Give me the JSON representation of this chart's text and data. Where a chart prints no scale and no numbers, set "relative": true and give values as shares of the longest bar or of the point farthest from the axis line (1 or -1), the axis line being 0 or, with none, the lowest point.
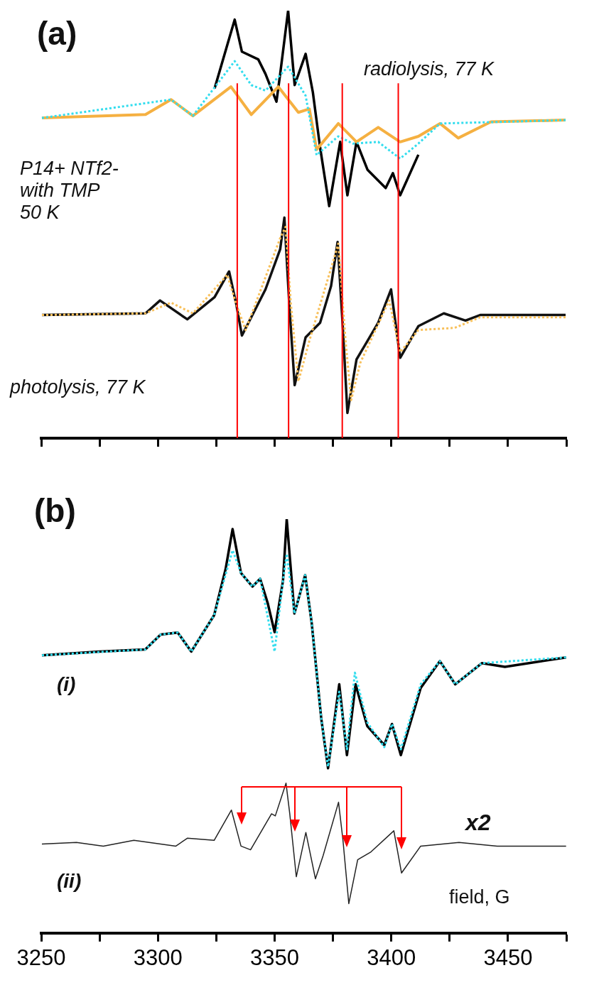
{
  "chart_data": [
    {
      "type": "line",
      "relative": true,
      "xlim": [
        3250,
        3475
      ],
      "xticks": [
        {
          "value": 3250,
          "label": null
        },
        {
          "value": 3275,
          "label": null
        },
        {
          "value": 3300,
          "label": null
        },
        {
          "value": 3325,
          "label": null
        },
        {
          "value": 3350,
          "label": null
        },
        {
          "value": 3375,
          "label": null
        },
        {
          "value": 3400,
          "label": null
        },
        {
          "value": 3425,
          "label": null
        },
        {
          "value": 3450,
          "label": null
        },
        {
          "value": 3475,
          "label": null
        }
      ],
      "tick_labels": false,
      "grid": false,
      "legend": false,
      "annotations": [
        "(a)",
        "radiolysis, 77 K",
        "P14+ NTf2-\nwith TMP\n50 K",
        "photolysis, 77 K"
      ],
      "ref_lines": [
        {
          "axis": "x",
          "value": 3334,
          "color": "#ff0000"
        },
        {
          "axis": "x",
          "value": 3356,
          "color": "#ff0000"
        },
        {
          "axis": "x",
          "value": 3379,
          "color": "#ff0000"
        },
        {
          "axis": "x",
          "value": 3403,
          "color": "#ff0000"
        }
      ],
      "series": [
        {
          "color": "#33ddee",
          "line_style": "dotted",
          "x": [
            3250.3,
            3305.6,
            3315,
            3332.9,
            3340,
            3346.1,
            3355.8,
            3363.3,
            3368,
            3377.3,
            3383.6,
            3394.4,
            3403.8,
            3411.6,
            3420.9,
            3474.7
          ],
          "values": [
            0.749,
            0.792,
            0.754,
            0.882,
            0.826,
            0.813,
            0.869,
            0.801,
            0.662,
            0.706,
            0.689,
            0.693,
            0.654,
            0.689,
            0.736,
            0.744
          ]
        },
        {
          "color": "#f8c05a",
          "line_style": "dotted",
          "x": [
            3250.3,
            3294.7,
            3305.6,
            3315,
            3329.7,
            3333.6,
            3337.6,
            3352.4,
            3354.7,
            3357,
            3360.2,
            3364.9,
            3375.7,
            3377.3,
            3380.4,
            3382.8,
            3386.7,
            3399.1,
            3403.8,
            3411.6,
            3427.2,
            3438.1,
            3474.7
          ],
          "values": [
            0.288,
            0.292,
            0.317,
            0.292,
            0.382,
            0.313,
            0.253,
            0.468,
            0.494,
            0.313,
            0.133,
            0.228,
            0.425,
            0.455,
            0.228,
            0.089,
            0.176,
            0.322,
            0.201,
            0.253,
            0.258,
            0.283,
            0.283
          ]
        },
        {
          "color": "#f5b041",
          "x": [
            3250.3,
            3294.7,
            3305.6,
            3315,
            3331.3,
            3340,
            3351.6,
            3360.2,
            3364.9,
            3368,
            3377.3,
            3385.1,
            3394.4,
            3403.8,
            3411.6,
            3420.9,
            3428.7,
            3442.7,
            3474.7
          ],
          "values": [
            0.749,
            0.757,
            0.792,
            0.754,
            0.822,
            0.757,
            0.822,
            0.762,
            0.77,
            0.675,
            0.736,
            0.693,
            0.727,
            0.693,
            0.706,
            0.736,
            0.702,
            0.74,
            0.744
          ]
        },
        {
          "color": "#000000",
          "x": [
            3324.3,
            3329.8,
            3332.9,
            3336,
            3343,
            3346.1,
            3350.8,
            3352.4,
            3355.8,
            3358.6,
            3363.3,
            3366.4,
            3369.5,
            3373.4,
            3378.1,
            3381.2,
            3385.1,
            3389.8,
            3397.6,
            3400.7,
            3403.8,
            3411.6
          ],
          "values": [
            0.818,
            0.921,
            0.979,
            0.904,
            0.886,
            0.852,
            0.787,
            0.852,
            1,
            0.826,
            0.899,
            0.809,
            0.68,
            0.543,
            0.693,
            0.568,
            0.693,
            0.628,
            0.585,
            0.62,
            0.568,
            0.663
          ]
        },
        {
          "color": "#111111",
          "x": [
            3250.3,
            3294.7,
            3300.9,
            3312.6,
            3324.3,
            3330.5,
            3333.6,
            3336,
            3346.1,
            3352.4,
            3354.2,
            3356.3,
            3358.6,
            3363.3,
            3369.5,
            3374.2,
            3377,
            3379.3,
            3381.2,
            3385.1,
            3394.4,
            3399.9,
            3403.8,
            3411.6,
            3422.5,
            3431.8,
            3438.1,
            3474.7
          ],
          "values": [
            0.288,
            0.292,
            0.322,
            0.278,
            0.33,
            0.39,
            0.313,
            0.24,
            0.348,
            0.442,
            0.516,
            0.313,
            0.124,
            0.236,
            0.27,
            0.356,
            0.459,
            0.253,
            0.059,
            0.184,
            0.27,
            0.348,
            0.188,
            0.262,
            0.292,
            0.275,
            0.288,
            0.288
          ]
        }
      ]
    },
    {
      "type": "line",
      "relative": true,
      "xlim": [
        3250,
        3475
      ],
      "xticks": [
        3250,
        {
          "value": 3275,
          "label": null
        },
        3300,
        {
          "value": 3325,
          "label": null
        },
        3350,
        {
          "value": 3375,
          "label": null
        },
        3400,
        {
          "value": 3425,
          "label": null
        },
        3450,
        {
          "value": 3475,
          "label": null
        }
      ],
      "xlabel": "field, G",
      "grid": false,
      "legend": false,
      "annotations": [
        "(b)",
        "(i)",
        "(ii)",
        "x2"
      ],
      "series": [
        {
          "color": "#33ddee",
          "line_style": "dotted",
          "x": [
            3250.3,
            3294.6,
            3301.2,
            3308.5,
            3314.3,
            3324.1,
            3332,
            3335.6,
            3340.5,
            3343.8,
            3350,
            3353.6,
            3355.2,
            3358.5,
            3363.1,
            3365.9,
            3370,
            3372.9,
            3377.7,
            3381,
            3384.4,
            3389.7,
            3397,
            3400.3,
            3404.1,
            3412.6,
            3420.8,
            3427.4,
            3438.8,
            3474.9
          ],
          "values": [
            0.671,
            0.685,
            0.721,
            0.726,
            0.68,
            0.768,
            0.925,
            0.87,
            0.837,
            0.856,
            0.68,
            0.851,
            0.916,
            0.772,
            0.865,
            0.749,
            0.518,
            0.402,
            0.583,
            0.444,
            0.629,
            0.509,
            0.449,
            0.505,
            0.444,
            0.601,
            0.657,
            0.601,
            0.652,
            0.666
          ]
        },
        {
          "color": "#000000",
          "x": [
            3250.3,
            3274.9,
            3294.6,
            3301.2,
            3308.5,
            3314.3,
            3324.1,
            3329,
            3332,
            3335.6,
            3340.5,
            3343.8,
            3347.1,
            3350,
            3353.6,
            3355.2,
            3358.5,
            3363.1,
            3365.9,
            3370,
            3372.9,
            3377.7,
            3381,
            3384.7,
            3389.7,
            3397,
            3400.3,
            3404.1,
            3412.6,
            3420.8,
            3427.4,
            3438.8,
            3448.7,
            3474.9
          ],
          "values": [
            0.671,
            0.68,
            0.685,
            0.721,
            0.726,
            0.68,
            0.768,
            0.879,
            0.976,
            0.87,
            0.837,
            0.856,
            0.796,
            0.727,
            0.851,
            1,
            0.772,
            0.865,
            0.749,
            0.518,
            0.398,
            0.601,
            0.43,
            0.601,
            0.5,
            0.454,
            0.505,
            0.43,
            0.592,
            0.657,
            0.601,
            0.652,
            0.643,
            0.666
          ]
        },
        {
          "color": "#222222",
          "x": [
            3250.3,
            3265.1,
            3276.6,
            3289.7,
            3307.7,
            3312.6,
            3324.1,
            3331.5,
            3335.6,
            3339.7,
            3348.7,
            3350.3,
            3354.9,
            3356.5,
            3359.3,
            3363.4,
            3367.5,
            3370.8,
            3377.4,
            3379.3,
            3381.8,
            3385.6,
            3391.3,
            3401.1,
            3404.4,
            3412.6,
            3429,
            3445.4,
            3474.9
          ],
          "values": [
            0.215,
            0.219,
            0.21,
            0.224,
            0.21,
            0.229,
            0.224,
            0.297,
            0.21,
            0.201,
            0.288,
            0.283,
            0.362,
            0.288,
            0.136,
            0.243,
            0.131,
            0.187,
            0.316,
            0.224,
            0.071,
            0.177,
            0.196,
            0.247,
            0.145,
            0.21,
            0.219,
            0.21,
            0.21
          ]
        }
      ]
    }
  ]
}
